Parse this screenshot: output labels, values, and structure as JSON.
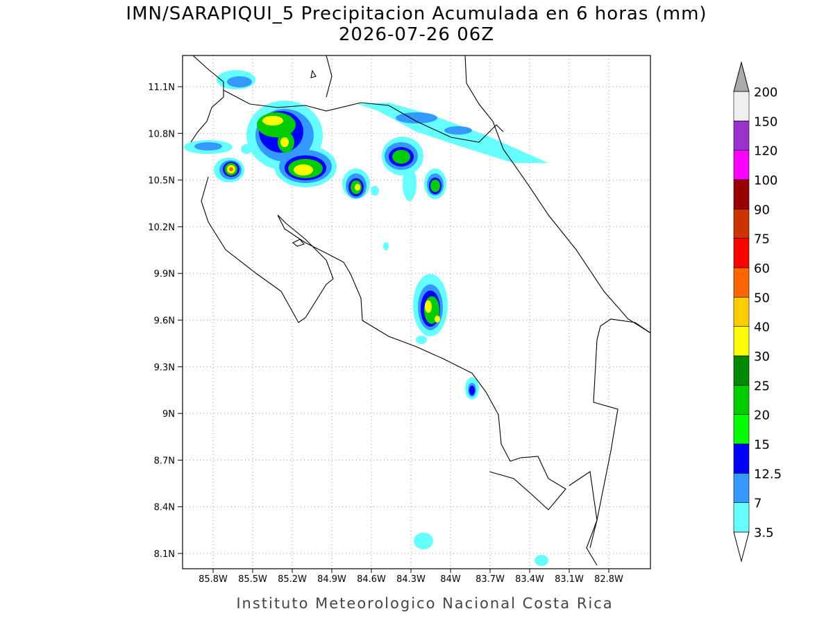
{
  "title": "IMN/SARAPIQUI_5 Precipitacion Acumulada en 6 horas (mm)",
  "subtitle": "2026-07-26 06Z",
  "map": {
    "lat_ticks": [
      "11.1N",
      "10.8N",
      "10.5N",
      "10.2N",
      "9.9N",
      "9.6N",
      "9.3N",
      "9N",
      "8.7N",
      "8.4N",
      "8.1N"
    ],
    "lon_ticks": [
      "85.8W",
      "85.5W",
      "85.2W",
      "84.9W",
      "84.6W",
      "84.3W",
      "84W",
      "83.7W",
      "83.4W",
      "83.1W",
      "82.8W"
    ],
    "grid": true
  },
  "colorbar": {
    "labels": [
      3.5,
      7,
      12.5,
      15,
      20,
      25,
      30,
      40,
      50,
      60,
      75,
      90,
      100,
      120,
      150,
      200
    ],
    "colors": [
      "#ffffff",
      "#66ffff",
      "#3399ff",
      "#0000ff",
      "#00ff00",
      "#00cc00",
      "#008800",
      "#ffff00",
      "#ffcc00",
      "#ff6600",
      "#ff0000",
      "#cc3300",
      "#990000",
      "#ff00ff",
      "#9933cc",
      "#f0f0f0",
      "#aaaaaa"
    ]
  },
  "footer": "Instituto Meteorologico Nacional Costa Rica"
}
